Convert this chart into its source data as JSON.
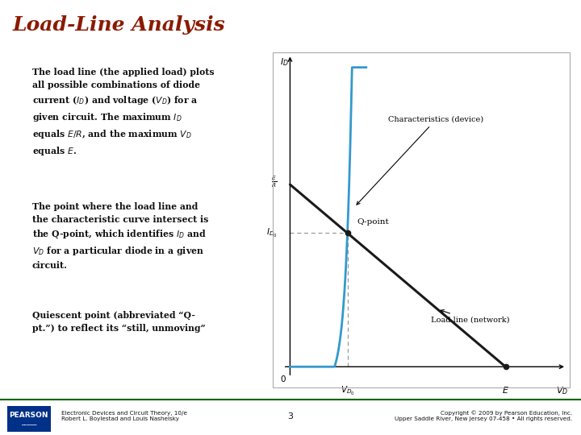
{
  "title": "Load-Line Analysis",
  "title_color": "#8B1A00",
  "title_fontsize": 18,
  "bg_color": "#FFFFFF",
  "graph_bg": "#FFFFFF",
  "footer_left": "Electronic Devices and Circuit Theory, 10/e\nRobert L. Boylestad and Louis Nashelsky",
  "footer_center": "3",
  "footer_right": "Copyright © 2009 by Pearson Education, Inc.\nUpper Saddle River, New Jersey 07-458 • All rights reserved.",
  "pearson_color": "#003087",
  "load_line_color": "#1a1a1a",
  "diode_curve_color": "#3399CC",
  "qpoint_color": "#1a1a1a",
  "dashed_color": "#999999",
  "graph_border_color": "#aaaaaa",
  "text1": "The load line (the applied load) plots\nall possible combinations of diode\ncurrent ($\\mathit{I_D}$) and voltage ($\\mathit{V_D}$) for a\ngiven circuit. The maximum $\\mathit{I_D}$\nequals $\\mathit{E/R}$, and the maximum $\\mathit{V_D}$\nequals $\\mathit{E}$.",
  "text2": "The point where the load line and\nthe characteristic curve intersect is\nthe Q-point, which identifies $\\mathit{I_D}$ and\n$\\mathit{V_D}$ for a particular diode in a given\ncircuit.",
  "text3": "Quiescent point (abbreviated “Q-\npt.”) to reflect its “still, unmoving”"
}
